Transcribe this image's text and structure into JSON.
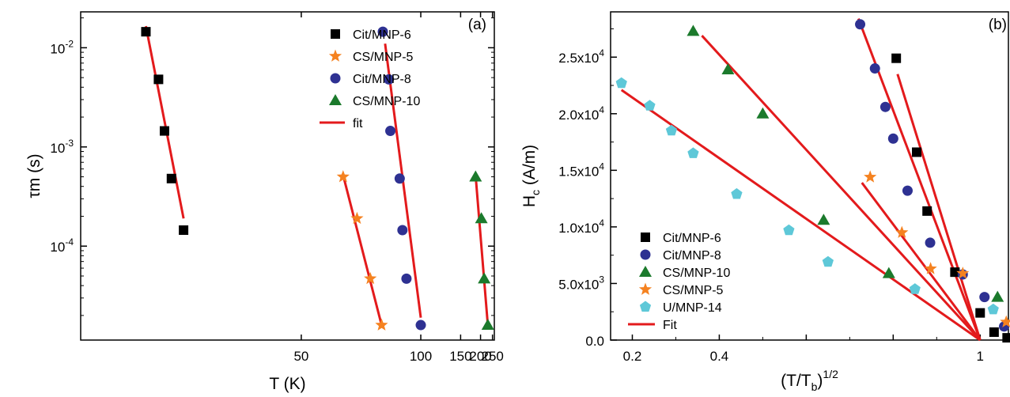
{
  "colors": {
    "Cit/MNP-6": "#000000",
    "CS/MNP-5": "#f58220",
    "Cit/MNP-8": "#2e3192",
    "CS/MNP-10": "#1b7a2c",
    "U/MNP-14": "#5ec8d8",
    "fit": "#e31a1c"
  },
  "chart_data": [
    {
      "type": "scatter",
      "panel_label": "(a)",
      "xlabel": "T (K)",
      "ylabel": "τm (s)",
      "x_scale": "reciprocal",
      "y_scale": "log",
      "xlim": [
        26,
        260
      ],
      "ylim": [
        1.13e-05,
        0.023
      ],
      "x_ticks": [
        50,
        100,
        150,
        200,
        250
      ],
      "y_ticks": [
        {
          "value": 0.01,
          "base": "10",
          "exp": "-2"
        },
        {
          "value": 0.001,
          "base": "10",
          "exp": "-3"
        },
        {
          "value": 0.0001,
          "base": "10",
          "exp": "-4"
        }
      ],
      "legend_position": "top-right",
      "grid": false,
      "series": [
        {
          "name": "Cit/MNP-6",
          "marker": "square",
          "color": "#000000",
          "x": [
            30.3,
            31.3,
            31.8,
            32.4,
            33.5
          ],
          "y": [
            0.0145,
            0.0048,
            0.00145,
            0.00048,
            0.000145
          ]
        },
        {
          "name": "CS/MNP-5",
          "marker": "star",
          "color": "#f58220",
          "x": [
            60.6,
            65.2,
            70.3,
            75.3
          ],
          "y": [
            0.0005,
            0.00019,
            4.7e-05,
            1.6e-05
          ]
        },
        {
          "name": "Cit/MNP-8",
          "marker": "circle",
          "color": "#2e3192",
          "x": [
            75.9,
            78.9,
            79.7,
            85.0,
            86.7,
            89.3,
            100.0
          ],
          "y": [
            0.0145,
            0.0048,
            0.00145,
            0.00048,
            0.000145,
            4.7e-05,
            1.6e-05
          ]
        },
        {
          "name": "CS/MNP-10",
          "marker": "triangle",
          "color": "#1b7a2c",
          "x": [
            184.7,
            202.8,
            213.0,
            227.8
          ],
          "y": [
            0.0005,
            0.00019,
            4.7e-05,
            1.6e-05
          ]
        }
      ],
      "fits": [
        {
          "name": "fit",
          "color": "#e31a1c",
          "x": [
            30.3,
            33.5
          ],
          "y": [
            0.0165,
            0.00019
          ]
        },
        {
          "name": "fit",
          "color": "#e31a1c",
          "x": [
            60.6,
            75.3
          ],
          "y": [
            0.00052,
            1.6e-05
          ]
        },
        {
          "name": "fit",
          "color": "#e31a1c",
          "x": [
            77.0,
            100.0
          ],
          "y": [
            0.011,
            1.9e-05
          ]
        },
        {
          "name": "fit",
          "color": "#e31a1c",
          "x": [
            184.7,
            227.8
          ],
          "y": [
            0.00052,
            1.6e-05
          ]
        }
      ]
    },
    {
      "type": "scatter",
      "panel_label": "(b)",
      "xlabel": "(T/Tb)1/2",
      "ylabel": "Hc (A/m)",
      "xlim": [
        0.15,
        1.065
      ],
      "ylim": [
        0,
        29000
      ],
      "x_ticks": [
        {
          "value": 0.2,
          "label": "0.2"
        },
        {
          "value": 0.4,
          "label": "0.4"
        },
        {
          "value": 0.6,
          "label": ""
        },
        {
          "value": 0.8,
          "label": ""
        },
        {
          "value": 1.0,
          "label": "1"
        }
      ],
      "y_ticks": [
        {
          "value": 0,
          "label": "0.0",
          "exp": ""
        },
        {
          "value": 5000,
          "label": "5.0x10",
          "exp": "3"
        },
        {
          "value": 10000,
          "label": "1.0x10",
          "exp": "4"
        },
        {
          "value": 15000,
          "label": "1.5x10",
          "exp": "4"
        },
        {
          "value": 20000,
          "label": "2.0x10",
          "exp": "4"
        },
        {
          "value": 25000,
          "label": "2.5x10",
          "exp": "4"
        }
      ],
      "legend_position": "bottom-left",
      "grid": false,
      "series": [
        {
          "name": "Cit/MNP-6",
          "marker": "square",
          "color": "#000000",
          "x": [
            0.807,
            0.854,
            0.878,
            0.942,
            1.0,
            1.032,
            1.062
          ],
          "y": [
            24900,
            16600,
            11400,
            6000,
            2400,
            700,
            200
          ]
        },
        {
          "name": "Cit/MNP-8",
          "marker": "circle",
          "color": "#2e3192",
          "x": [
            0.724,
            0.758,
            0.782,
            0.8,
            0.833,
            0.885,
            0.96,
            1.01,
            1.055
          ],
          "y": [
            27900,
            24000,
            20600,
            17800,
            13200,
            8600,
            5800,
            3800,
            1200
          ]
        },
        {
          "name": "CS/MNP-10",
          "marker": "triangle",
          "color": "#1b7a2c",
          "x": [
            0.34,
            0.42,
            0.5,
            0.64,
            0.79,
            1.04
          ],
          "y": [
            27300,
            23900,
            20000,
            10600,
            5900,
            3800
          ]
        },
        {
          "name": "CS/MNP-5",
          "marker": "star",
          "color": "#f58220",
          "x": [
            0.747,
            0.82,
            0.886,
            0.96,
            1.06
          ],
          "y": [
            14400,
            9500,
            6300,
            5900,
            1600
          ]
        },
        {
          "name": "U/MNP-14",
          "marker": "pentagon",
          "color": "#5ec8d8",
          "x": [
            0.175,
            0.24,
            0.29,
            0.34,
            0.44,
            0.56,
            0.65,
            0.85,
            1.03
          ],
          "y": [
            22700,
            20700,
            18500,
            16500,
            12900,
            9700,
            6900,
            4500,
            2700
          ]
        }
      ],
      "fits": [
        {
          "name": "Fit",
          "color": "#e31a1c",
          "x": [
            0.175,
            1.0
          ],
          "y": [
            22100,
            0
          ]
        },
        {
          "name": "Fit",
          "color": "#e31a1c",
          "x": [
            0.36,
            1.0
          ],
          "y": [
            26900,
            0
          ]
        },
        {
          "name": "Fit",
          "color": "#e31a1c",
          "x": [
            0.72,
            1.0
          ],
          "y": [
            28400,
            0
          ]
        },
        {
          "name": "Fit",
          "color": "#e31a1c",
          "x": [
            0.81,
            1.0
          ],
          "y": [
            23500,
            0
          ]
        },
        {
          "name": "Fit",
          "color": "#e31a1c",
          "x": [
            0.728,
            1.0
          ],
          "y": [
            13900,
            0
          ]
        }
      ]
    }
  ],
  "legend_a": [
    "Cit/MNP-6",
    "CS/MNP-5",
    "Cit/MNP-8",
    "CS/MNP-10",
    "fit"
  ],
  "legend_b": [
    "Cit/MNP-6",
    "Cit/MNP-8",
    "CS/MNP-10",
    "CS/MNP-5",
    "U/MNP-14",
    "Fit"
  ]
}
